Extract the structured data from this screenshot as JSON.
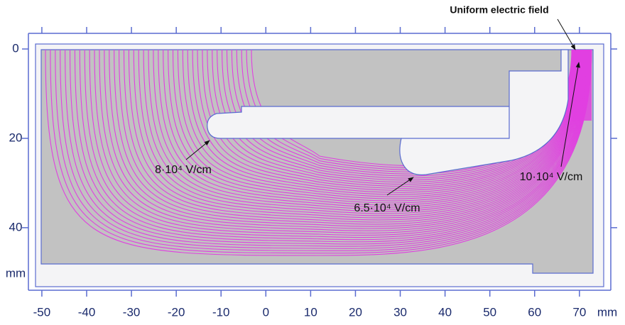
{
  "chart_data": {
    "type": "field-map",
    "x_label": "mm",
    "y_label": "mm",
    "xlim": [
      -53,
      77
    ],
    "ylim": [
      -3.5,
      54
    ],
    "y_inverted": true,
    "xticks": [
      -50,
      -40,
      -30,
      -20,
      -10,
      0,
      10,
      20,
      30,
      40,
      50,
      60,
      70
    ],
    "yticks": [
      0,
      20,
      40
    ],
    "annotations": [
      "Uniform electric field",
      "8·10⁴ V/cm",
      "6.5·10⁴ V/cm",
      "10·10⁴ V/cm"
    ],
    "line_color": "#e040e0"
  }
}
